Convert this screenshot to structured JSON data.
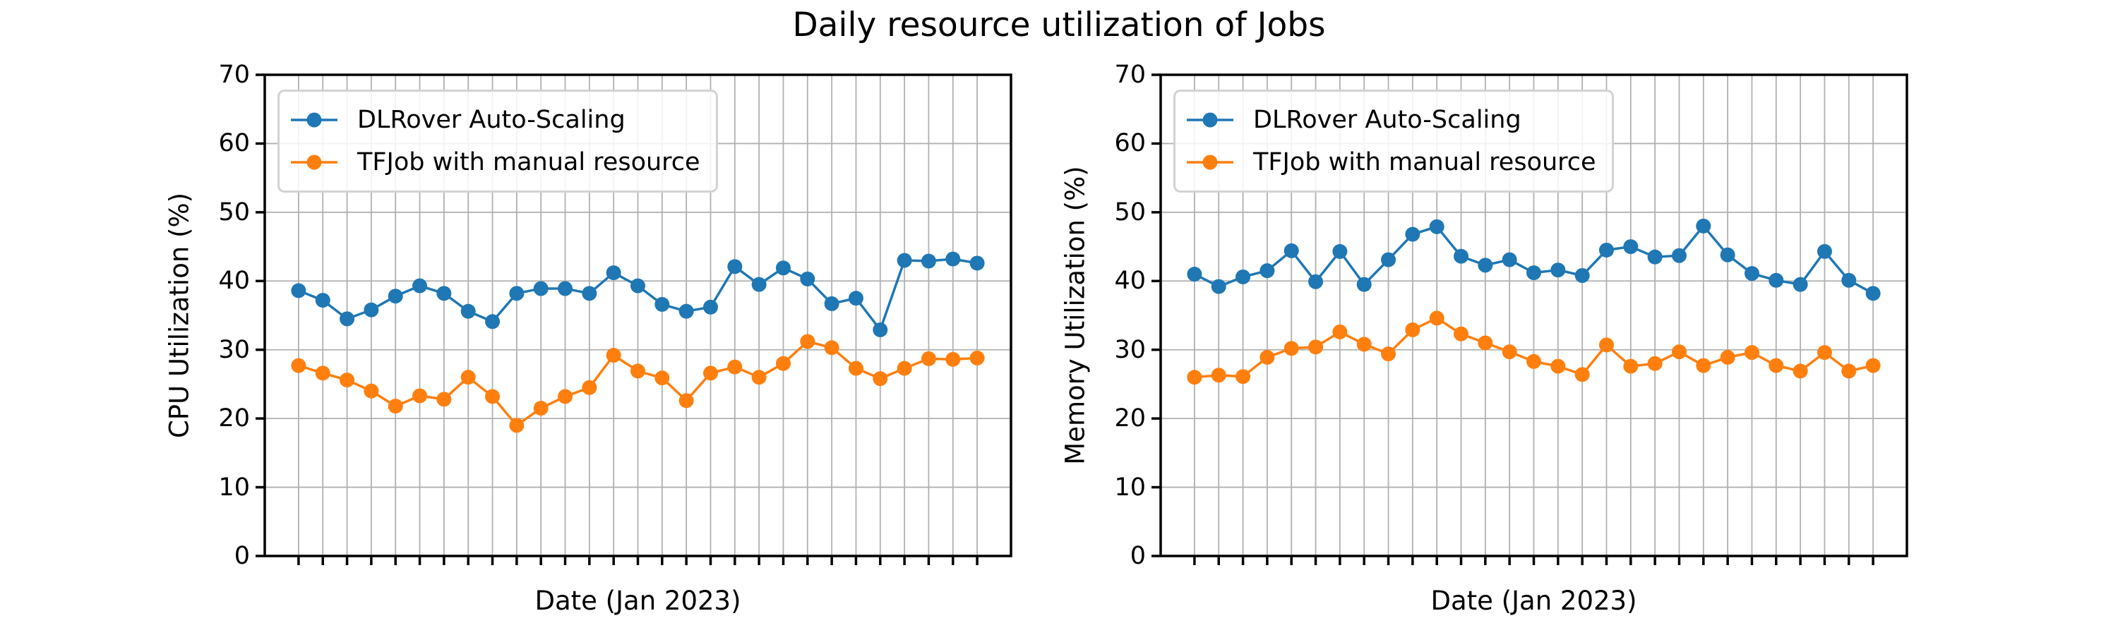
{
  "title": "Daily resource utilization of Jobs",
  "colors": {
    "blue": "#1f77b4",
    "orange": "#ff7f0e",
    "grid": "#b0b0b0",
    "spine": "#000000",
    "legend_border": "#d2d2d2"
  },
  "legend": {
    "entries": [
      "DLRover Auto-Scaling",
      "TFJob with manual resource"
    ]
  },
  "chart_data": [
    {
      "type": "line",
      "title": "",
      "xlabel": "Date (Jan 2023)",
      "ylabel": "CPU Utilization (%)",
      "ylim": [
        0,
        70
      ],
      "y_ticks": [
        0,
        10,
        20,
        30,
        40,
        50,
        60,
        70
      ],
      "x_tick_labels_shown": false,
      "grid": true,
      "legend_position": "upper left",
      "x": [
        1,
        2,
        3,
        4,
        5,
        6,
        7,
        8,
        9,
        10,
        11,
        12,
        13,
        14,
        15,
        16,
        17,
        18,
        19,
        20,
        21,
        22,
        23,
        24,
        25,
        26,
        27,
        28,
        29
      ],
      "series": [
        {
          "name": "DLRover Auto-Scaling",
          "color": "#1f77b4",
          "values": [
            38.6,
            37.2,
            34.5,
            35.8,
            37.8,
            39.3,
            38.2,
            35.6,
            34.1,
            38.2,
            38.9,
            38.9,
            38.2,
            41.2,
            39.3,
            36.6,
            35.6,
            36.2,
            42.1,
            39.5,
            41.9,
            40.3,
            36.7,
            37.5,
            32.9,
            43.0,
            42.9,
            43.2,
            42.6
          ]
        },
        {
          "name": "TFJob with manual resource",
          "color": "#ff7f0e",
          "values": [
            27.7,
            26.6,
            25.6,
            24.0,
            21.8,
            23.3,
            22.8,
            26.0,
            23.2,
            19.0,
            21.5,
            23.2,
            24.5,
            29.2,
            26.9,
            25.9,
            22.6,
            26.6,
            27.5,
            26.0,
            28.0,
            31.2,
            30.3,
            27.3,
            25.8,
            27.3,
            28.7,
            28.6,
            28.8
          ]
        }
      ]
    },
    {
      "type": "line",
      "title": "",
      "xlabel": "Date (Jan 2023)",
      "ylabel": "Memory Utilization (%)",
      "ylim": [
        0,
        70
      ],
      "y_ticks": [
        0,
        10,
        20,
        30,
        40,
        50,
        60,
        70
      ],
      "x_tick_labels_shown": false,
      "grid": true,
      "legend_position": "upper left",
      "x": [
        1,
        2,
        3,
        4,
        5,
        6,
        7,
        8,
        9,
        10,
        11,
        12,
        13,
        14,
        15,
        16,
        17,
        18,
        19,
        20,
        21,
        22,
        23,
        24,
        25,
        26,
        27,
        28,
        29
      ],
      "series": [
        {
          "name": "DLRover Auto-Scaling",
          "color": "#1f77b4",
          "values": [
            41.0,
            39.2,
            40.6,
            41.5,
            44.4,
            39.9,
            44.3,
            39.5,
            43.1,
            46.8,
            47.9,
            43.6,
            42.3,
            43.1,
            41.2,
            41.6,
            40.8,
            44.5,
            45.0,
            43.5,
            43.7,
            48.0,
            43.8,
            41.1,
            40.1,
            39.5,
            44.3,
            40.1,
            38.2
          ]
        },
        {
          "name": "TFJob with manual resource",
          "color": "#ff7f0e",
          "values": [
            26.0,
            26.3,
            26.1,
            28.9,
            30.2,
            30.4,
            32.6,
            30.8,
            29.4,
            32.9,
            34.6,
            32.3,
            31.0,
            29.7,
            28.3,
            27.6,
            26.4,
            30.7,
            27.6,
            28.0,
            29.7,
            27.7,
            28.9,
            29.6,
            27.7,
            26.9,
            29.6,
            26.9,
            27.7
          ]
        }
      ]
    }
  ]
}
